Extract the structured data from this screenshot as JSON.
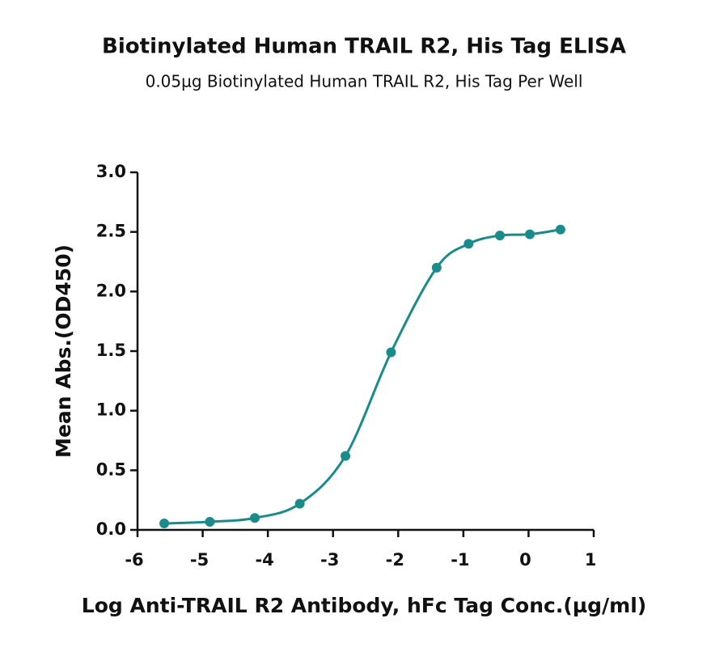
{
  "chart_data": {
    "type": "scatter",
    "title": "Biotinylated Human TRAIL R2, His Tag ELISA",
    "subtitle": "0.05µg Biotinylated Human TRAIL R2, His Tag Per Well",
    "x_label": "Log Anti-TRAIL R2 Antibody, hFc Tag Conc.(µg/ml)",
    "y_label": "Mean Abs.(OD450)",
    "color": "#1a8b8b",
    "x": [
      -5.59,
      -4.89,
      -4.2,
      -3.51,
      -2.81,
      -2.11,
      -1.41,
      -0.92,
      -0.44,
      0.02,
      0.49
    ],
    "values": [
      0.054,
      0.068,
      0.1,
      0.22,
      0.62,
      1.49,
      2.2,
      2.4,
      2.47,
      2.48,
      2.52
    ],
    "xlim": [
      -6,
      1
    ],
    "xticks": [
      -6,
      -5,
      -4,
      -3,
      -2,
      -1,
      0,
      1
    ],
    "ylim": [
      0,
      3
    ],
    "yticks": [
      {
        "value": 0,
        "label": "0.0"
      },
      0.5,
      {
        "value": 1,
        "label": "1.0"
      },
      1.5,
      {
        "value": 2,
        "label": "2.0"
      },
      2.5,
      {
        "value": 3,
        "label": "3.0"
      }
    ]
  }
}
